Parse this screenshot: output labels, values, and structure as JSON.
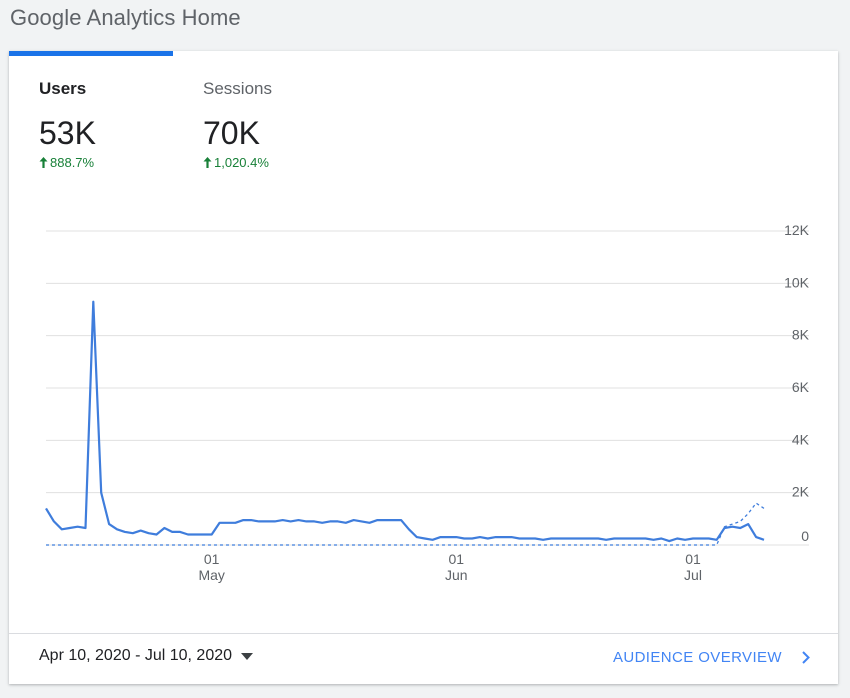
{
  "header": {
    "title": "Google Analytics Home"
  },
  "metrics": {
    "users": {
      "label": "Users",
      "value": "53K",
      "change": "888.7%"
    },
    "sessions": {
      "label": "Sessions",
      "value": "70K",
      "change": "1,020.4%"
    }
  },
  "footer": {
    "date_range": "Apr 10, 2020 - Jul 10, 2020",
    "link_label": "AUDIENCE OVERVIEW"
  },
  "colors": {
    "accent": "#1a73e8",
    "series": "#3f7ddc",
    "positive": "#188038",
    "link": "#4285f4"
  },
  "chart_data": {
    "type": "line",
    "y_ticks": [
      "12K",
      "10K",
      "8K",
      "6K",
      "4K",
      "2K",
      "0"
    ],
    "x_ticks": [
      {
        "day": "01",
        "month": "May"
      },
      {
        "day": "01",
        "month": "Jun"
      },
      {
        "day": "01",
        "month": "Jul"
      }
    ],
    "ylim": [
      0,
      12000
    ],
    "grid": true,
    "series": [
      {
        "style": "solid",
        "start_date": "2020-04-10",
        "values": [
          1400,
          900,
          600,
          650,
          700,
          650,
          9300,
          2000,
          800,
          600,
          500,
          450,
          550,
          450,
          400,
          650,
          500,
          500,
          400,
          400,
          400,
          400,
          850,
          850,
          850,
          950,
          950,
          900,
          900,
          900,
          950,
          900,
          950,
          900,
          900,
          850,
          900,
          900,
          850,
          950,
          900,
          850,
          950,
          950,
          950,
          950,
          600,
          300,
          250,
          200,
          300,
          300,
          300,
          250,
          250,
          300,
          250,
          300,
          300,
          300,
          250,
          250,
          250,
          200,
          250,
          250,
          250,
          250,
          250,
          250,
          250,
          200,
          250,
          250,
          250,
          250,
          250,
          200,
          250,
          150,
          250,
          200,
          250,
          250,
          250,
          200,
          650,
          700,
          650,
          800,
          300,
          200
        ]
      },
      {
        "style": "dashed",
        "start_date": "2020-04-10",
        "values": [
          0,
          0,
          0,
          0,
          0,
          0,
          0,
          0,
          0,
          0,
          0,
          0,
          0,
          0,
          0,
          0,
          0,
          0,
          0,
          0,
          0,
          0,
          0,
          0,
          0,
          0,
          0,
          0,
          0,
          0,
          0,
          0,
          0,
          0,
          0,
          0,
          0,
          0,
          0,
          0,
          0,
          0,
          0,
          0,
          0,
          0,
          0,
          0,
          0,
          0,
          0,
          0,
          0,
          0,
          0,
          0,
          0,
          0,
          0,
          0,
          0,
          0,
          0,
          0,
          0,
          0,
          0,
          0,
          0,
          0,
          0,
          0,
          0,
          0,
          0,
          0,
          0,
          0,
          0,
          0,
          0,
          0,
          0,
          0,
          0,
          0,
          700,
          800,
          900,
          1200,
          1600,
          1400
        ]
      }
    ]
  }
}
